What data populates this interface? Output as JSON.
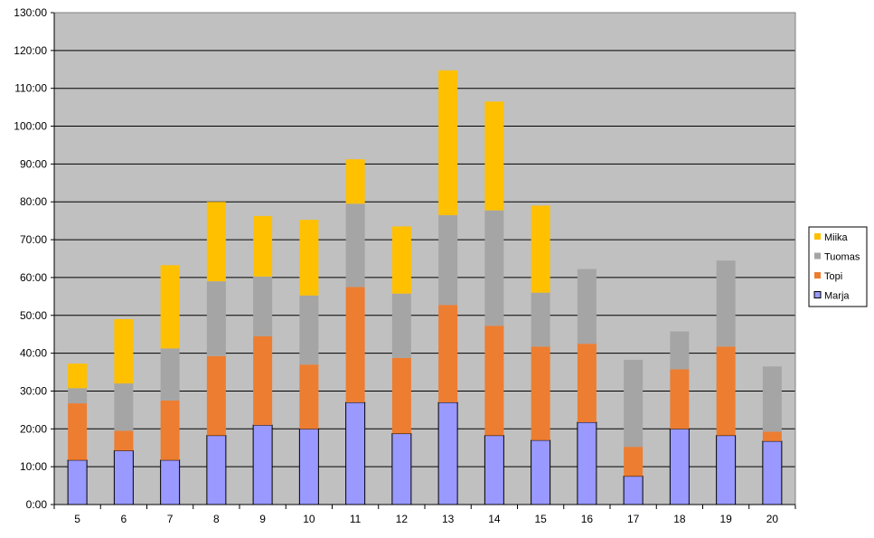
{
  "chart_data": {
    "type": "bar",
    "stacked": true,
    "categories": [
      "5",
      "6",
      "7",
      "8",
      "9",
      "10",
      "11",
      "12",
      "13",
      "14",
      "15",
      "16",
      "17",
      "18",
      "19",
      "20"
    ],
    "y_tick_labels": [
      "0:00",
      "10:00",
      "20:00",
      "30:00",
      "40:00",
      "50:00",
      "60:00",
      "70:00",
      "80:00",
      "90:00",
      "100:00",
      "110:00",
      "120:00",
      "130:00"
    ],
    "ylim": [
      0,
      130
    ],
    "grid": true,
    "legend_position": "right",
    "series": [
      {
        "name": "Marja",
        "color": "#9999ff",
        "values": [
          11.75,
          14.25,
          11.75,
          18.25,
          21,
          20,
          27,
          18.75,
          27,
          18.25,
          17,
          21.75,
          7.5,
          20,
          18.25,
          16.75
        ]
      },
      {
        "name": "Topi",
        "color": "#ed7d31",
        "values": [
          15,
          5.25,
          15.75,
          21,
          23.5,
          17,
          30.5,
          20,
          25.75,
          29,
          24.75,
          20.75,
          7.75,
          15.75,
          23.5,
          2.5
        ]
      },
      {
        "name": "Tuomas",
        "color": "#a5a5a5",
        "values": [
          4,
          12.5,
          13.75,
          19.75,
          15.75,
          18.25,
          22,
          17,
          23.75,
          30.5,
          14.25,
          19.75,
          23,
          10,
          22.75,
          17.25
        ]
      },
      {
        "name": "Miika",
        "color": "#ffc000",
        "values": [
          6.5,
          17,
          22,
          21,
          16,
          20,
          11.75,
          17.75,
          38.25,
          28.75,
          23,
          0,
          0,
          0,
          0,
          0
        ]
      }
    ]
  }
}
